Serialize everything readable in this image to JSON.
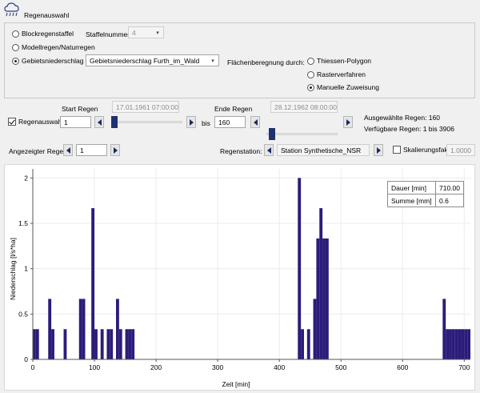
{
  "header": {
    "title": "Regenauswahl",
    "icon": "rain-cloud-icon"
  },
  "selection": {
    "options": [
      {
        "label": "Blockregenstaffel",
        "selected": false
      },
      {
        "label": "Modellregen/Naturregen",
        "selected": false
      },
      {
        "label": "Gebietsniederschlag",
        "selected": true
      }
    ],
    "staffel_label": "Staffelnummer:",
    "staffel_value": "4",
    "gebiet_value": "Gebietsniederschlag Furth_im_Wald",
    "flaechen_label": "Flächenberegnung durch:",
    "flaechen_options": [
      {
        "label": "Thiessen-Polygon",
        "selected": false
      },
      {
        "label": "Rasterverfahren",
        "selected": false
      },
      {
        "label": "Manuelle Zuweisung",
        "selected": true
      }
    ]
  },
  "regen": {
    "checkbox_label": "Regenauswahl",
    "checked": true,
    "start_label": "Start Regen",
    "start_date": "17.01.1961 07:00:00",
    "start_value": "1",
    "start_fraction": 0.0,
    "bis_label": "bis",
    "end_label": "Ende Regen",
    "end_date": "28.12.1962 08:00:00",
    "end_value": "160",
    "end_fraction": 0.04,
    "selected_text": "Ausgewählte Regen: 160",
    "available_text": "Verfügbare Regen: 1 bis 3906"
  },
  "display": {
    "shown_label": "Angezeigter Regen:",
    "shown_value": "1",
    "station_label": "Regenstation:",
    "station_value": "Station Synthetische_NSR",
    "scale_label": "Skalierungsfaktor",
    "scale_checked": false,
    "scale_value": "1.0000"
  },
  "info": {
    "rows": [
      {
        "label": "Dauer [min]",
        "value": "710.00"
      },
      {
        "label": "Summe [mm]",
        "value": "0.6"
      }
    ]
  },
  "chart_data": {
    "type": "bar",
    "xlabel": "Zeit [min]",
    "ylabel": "Niederschlag [l/s*ha]",
    "xlim": [
      0,
      710
    ],
    "ylim": [
      0,
      2.1
    ],
    "xticks": [
      0,
      100,
      200,
      300,
      400,
      500,
      600,
      700
    ],
    "yticks": [
      0,
      0.5,
      1,
      1.5,
      2
    ],
    "ytick_labels": [
      "0",
      "0.5",
      "1",
      "1.5",
      "2"
    ],
    "bar_width": 5,
    "color": "#2b1c7a",
    "x": [
      0,
      5,
      25,
      30,
      50,
      75,
      80,
      95,
      100,
      110,
      120,
      125,
      135,
      140,
      150,
      155,
      160,
      430,
      435,
      445,
      455,
      460,
      465,
      470,
      475,
      665,
      670,
      675,
      680,
      685,
      690,
      695,
      700,
      705
    ],
    "values": [
      0.333,
      0.333,
      0.667,
      0.333,
      0.333,
      0.667,
      0.667,
      1.667,
      0.333,
      0.333,
      0.333,
      0.333,
      0.667,
      0.333,
      0.333,
      0.333,
      0.333,
      2.0,
      0.333,
      0.333,
      0.667,
      1.333,
      1.667,
      1.333,
      1.333,
      0.667,
      0.333,
      0.333,
      0.333,
      0.333,
      0.333,
      0.333,
      0.333,
      0.333
    ]
  }
}
